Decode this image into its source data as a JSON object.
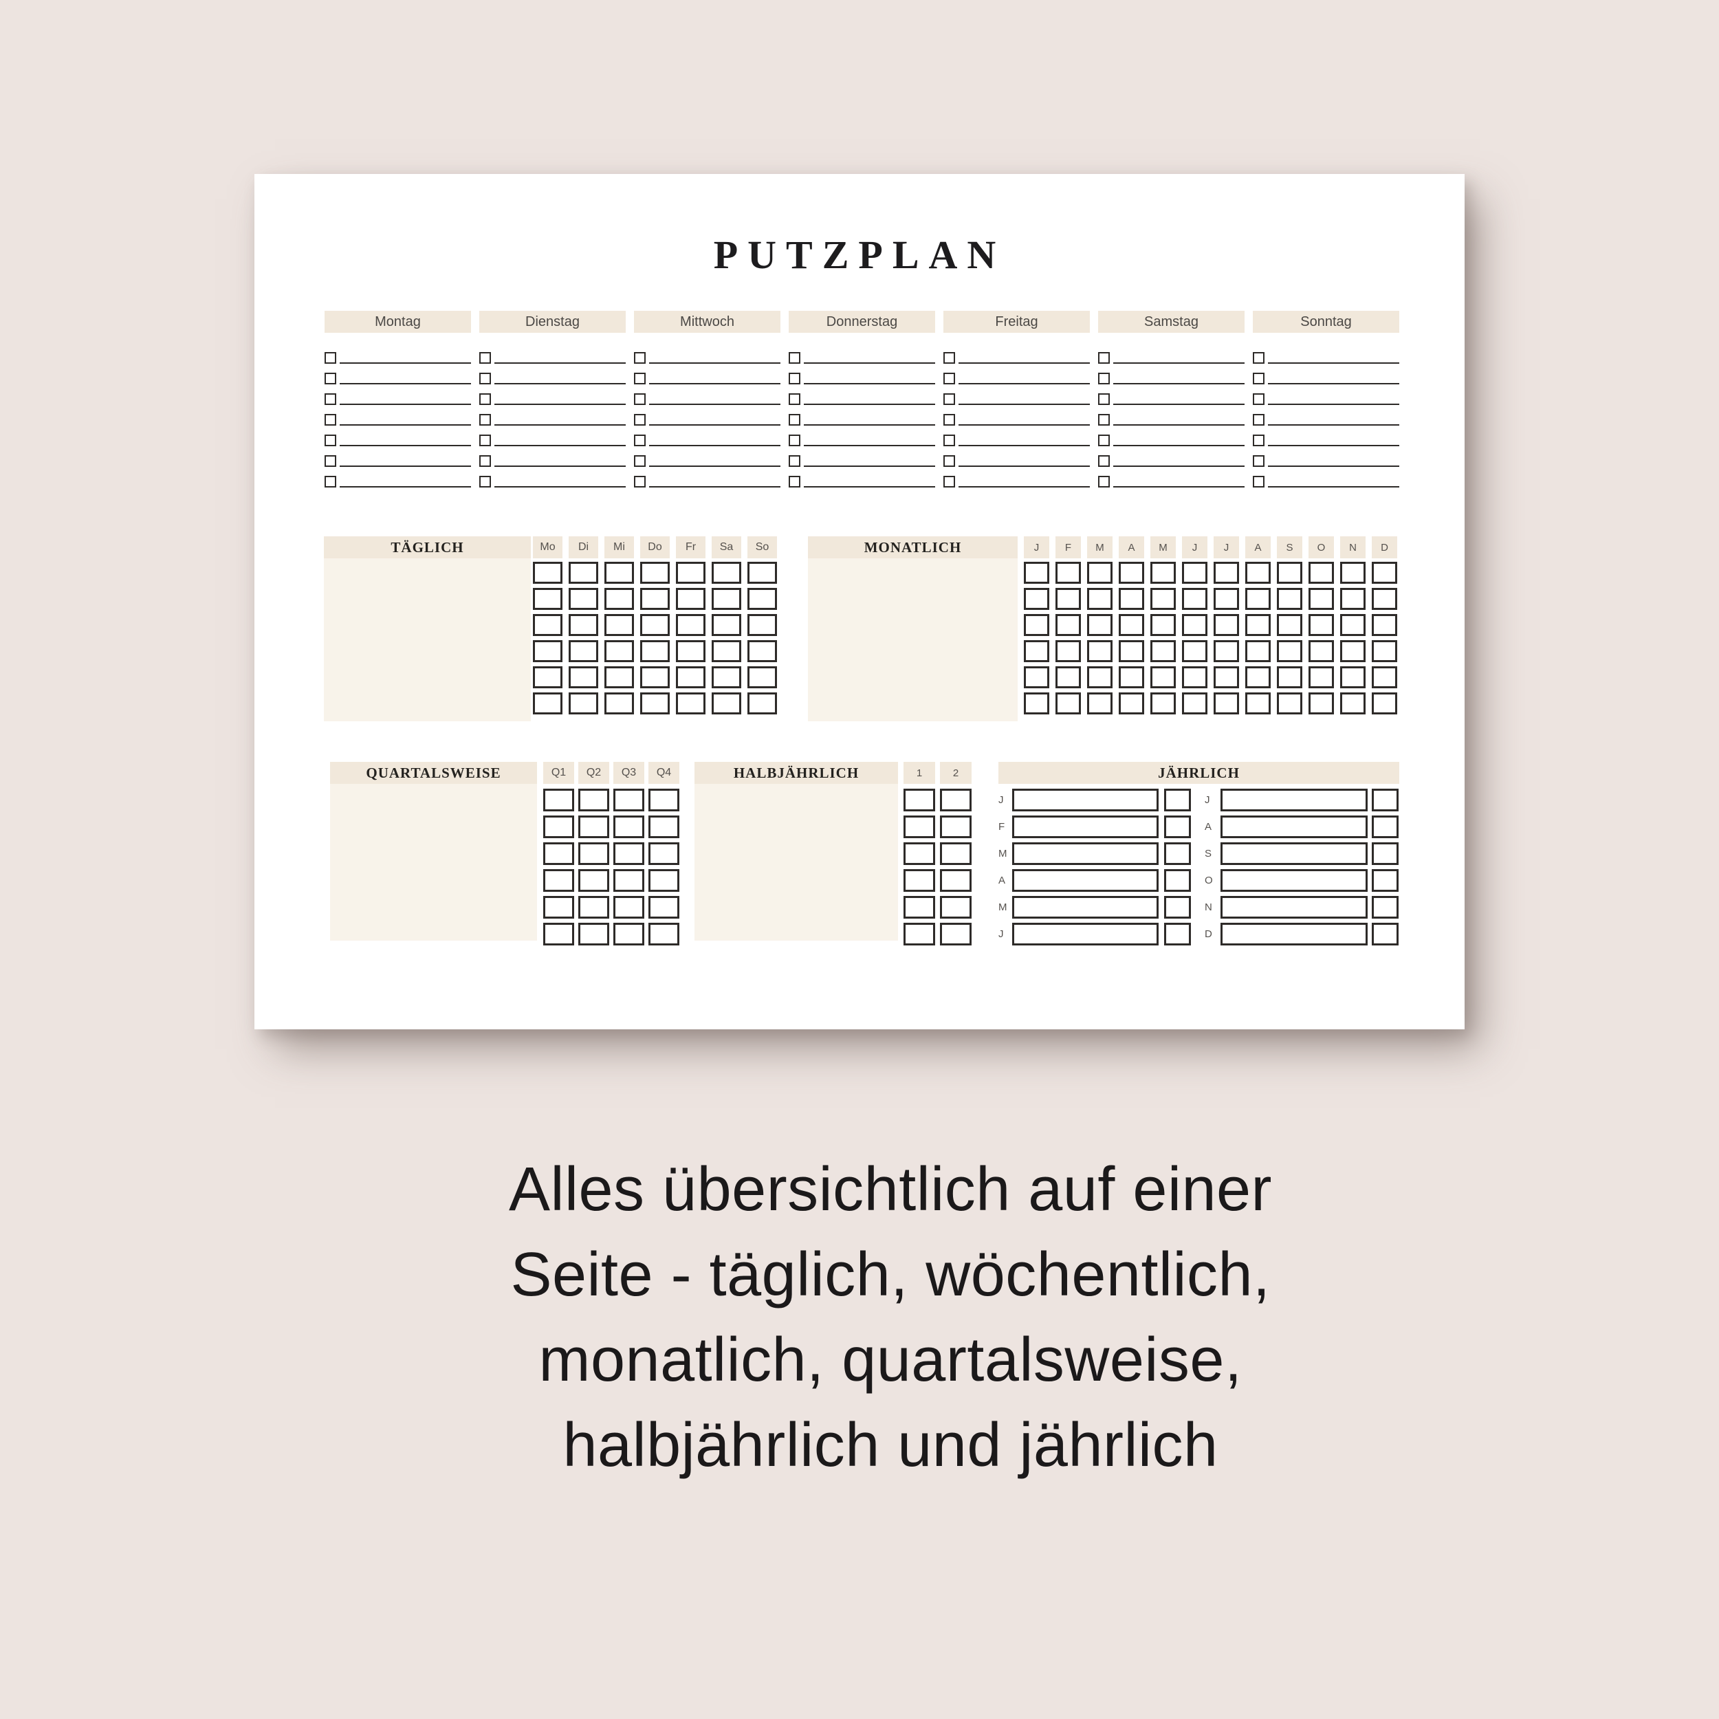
{
  "page": {
    "title": "PUTZPLAN",
    "week": {
      "days": [
        "Montag",
        "Dienstag",
        "Mittwoch",
        "Donnerstag",
        "Freitag",
        "Samstag",
        "Sonntag"
      ]
    },
    "daily": {
      "title": "TÄGLICH",
      "columns": [
        "Mo",
        "Di",
        "Mi",
        "Do",
        "Fr",
        "Sa",
        "So"
      ]
    },
    "monthly": {
      "title": "MONATLICH",
      "columns": [
        "J",
        "F",
        "M",
        "A",
        "M",
        "J",
        "J",
        "A",
        "S",
        "O",
        "N",
        "D"
      ]
    },
    "quarterly": {
      "title": "QUARTALSWEISE",
      "columns": [
        "Q1",
        "Q2",
        "Q3",
        "Q4"
      ]
    },
    "halfyearly": {
      "title": "HALBJÄHRLICH",
      "columns": [
        "1",
        "2"
      ]
    },
    "yearly": {
      "title": "JÄHRLICH",
      "left_months": [
        "J",
        "F",
        "M",
        "A",
        "M",
        "J"
      ],
      "right_months": [
        "J",
        "A",
        "S",
        "O",
        "N",
        "D"
      ]
    }
  },
  "caption": {
    "lines": [
      "Alles übersichtlich auf einer",
      "Seite - täglich, wöchentlich,",
      "monatlich, quartalsweise,",
      "halbjährlich und jährlich"
    ]
  },
  "colors": {
    "background": "#EDE4E0",
    "page": "#FFFFFF",
    "band": "#F1E8DB",
    "panel_body": "#F8F3EA",
    "ink": "#2E2B29",
    "caption_ink": "#1B191A"
  }
}
